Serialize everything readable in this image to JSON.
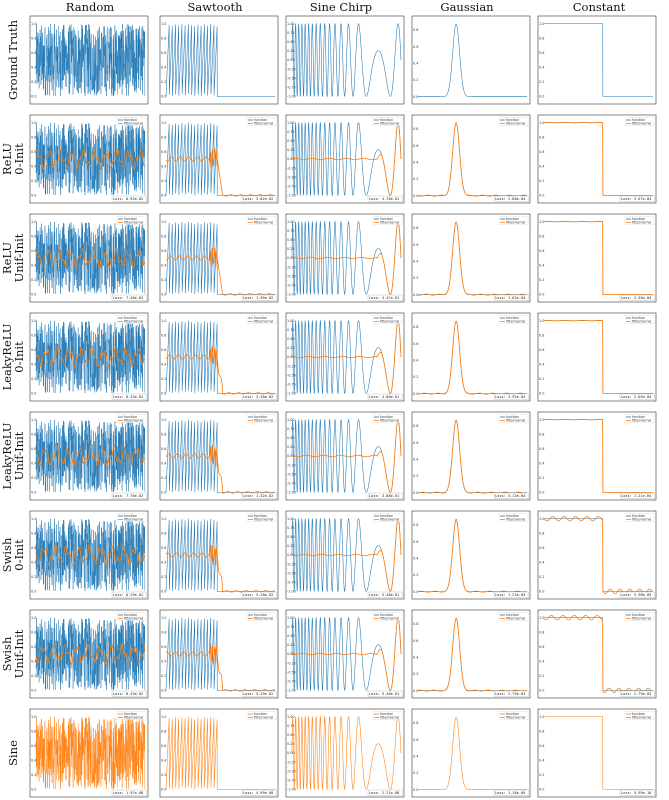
{
  "chart_data": {
    "type": "line",
    "columns": [
      {
        "name": "Random",
        "y_ticks": [
          "0.0",
          "0.2",
          "0.4",
          "0.6",
          "0.8",
          "1.0"
        ]
      },
      {
        "name": "Sawtooth",
        "y_ticks": [
          "0.0",
          "0.2",
          "0.4",
          "0.6",
          "0.8",
          "1.0"
        ]
      },
      {
        "name": "Sine Chirp",
        "y_ticks": [
          "-1.00",
          "-0.75",
          "-0.50",
          "-0.25",
          "0.00",
          "0.25",
          "0.50",
          "0.75",
          "1.00"
        ]
      },
      {
        "name": "Gaussian",
        "y_ticks": [
          "0.0",
          "0.2",
          "0.4",
          "0.6",
          "0.8"
        ]
      },
      {
        "name": "Constant",
        "y_ticks": [
          "0.0",
          "0.2",
          "0.4",
          "0.6",
          "0.8",
          "1.0"
        ]
      }
    ],
    "rows": [
      {
        "label": [
          "Ground Truth"
        ],
        "losses": []
      },
      {
        "label": [
          "ReLU",
          "0-Init"
        ],
        "losses": [
          "Loss: 8.92e-02",
          "Loss: 3.82e-02",
          "Loss: 4.78e-01",
          "Loss: 2.88e-04",
          "Loss: 3.67e-04"
        ]
      },
      {
        "label": [
          "ReLU",
          "Unif-Init"
        ],
        "losses": [
          "Loss: 7.48e-02",
          "Loss: 1.99e-02",
          "Loss: 4.47e-01",
          "Loss: 1.62e-04",
          "Loss: 2.56e-04"
        ]
      },
      {
        "label": [
          "LeakyReLU",
          "0-Init"
        ],
        "losses": [
          "Loss: 8.33e-02",
          "Loss: 3.28e-02",
          "Loss: 4.88e-01",
          "Loss: 3.92e-04",
          "Loss: 2.05e-04"
        ]
      },
      {
        "label": [
          "LeakyReLU",
          "Unif-Init"
        ],
        "losses": [
          "Loss: 7.76e-02",
          "Loss: 1.32e-02",
          "Loss: 3.88e-01",
          "Loss: 3.13e-04",
          "Loss: 1.21e-04"
        ]
      },
      {
        "label": [
          "Swish",
          "0-Init"
        ],
        "losses": [
          "Loss: 8.29e-02",
          "Loss: 3.28e-02",
          "Loss: 5.48e-01",
          "Loss: 1.23e-03",
          "Loss: 5.98e-03"
        ]
      },
      {
        "label": [
          "Swish",
          "Unif-Init"
        ],
        "losses": [
          "Loss: 8.29e-02",
          "Loss: 3.29e-02",
          "Loss: 5.48e-01",
          "Loss: 2.79e-03",
          "Loss: 2.79e-03"
        ]
      },
      {
        "label": [
          "Sine"
        ],
        "losses": [
          "Loss: 1.97e-08",
          "Loss: 4.99e-08",
          "Loss: 2.21e-08",
          "Loss: 1.18e-09",
          "Loss: 9.99e-10"
        ]
      }
    ],
    "legend": [
      "function",
      "fitted kernel"
    ],
    "series_colors": {
      "function": "#1f77b4",
      "fitted": "#ff7f0e"
    }
  }
}
